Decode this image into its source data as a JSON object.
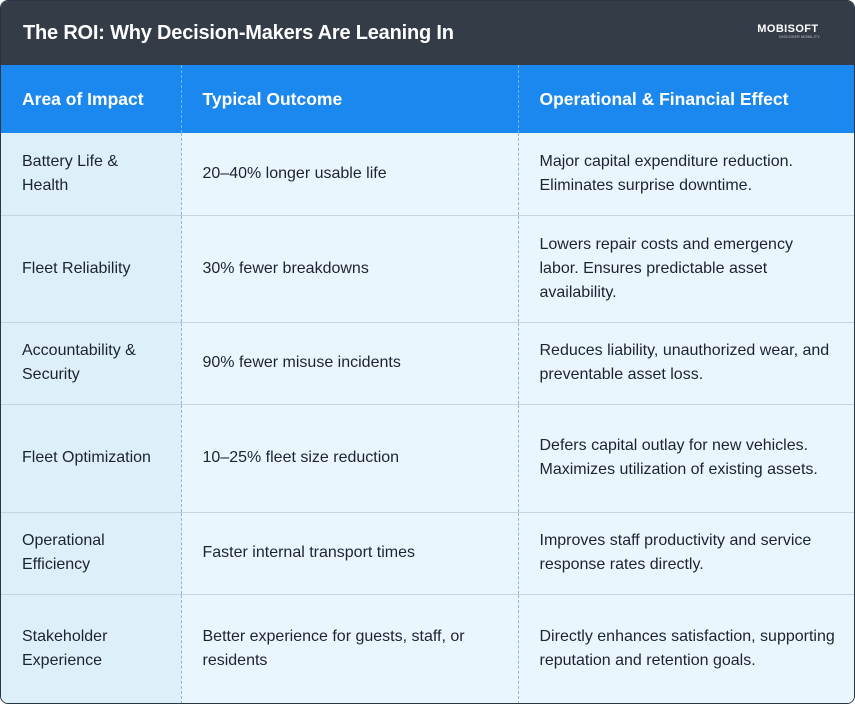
{
  "header": {
    "title": "The ROI: Why Decision-Makers Are Leaning In",
    "logo_text": "MOBISOFT",
    "logo_tagline": "DISCOVER MOBILITY"
  },
  "table": {
    "columns": [
      "Area of Impact",
      "Typical Outcome",
      "Operational & Financial Effect"
    ],
    "rows": [
      {
        "area": "Battery Life & Health",
        "outcome": "20–40% longer usable life",
        "effect": "Major capital expenditure reduction. Eliminates surprise downtime."
      },
      {
        "area": "Fleet Reliability",
        "outcome": "30% fewer breakdowns",
        "effect": "Lowers repair costs and emergency labor. Ensures predictable asset availability."
      },
      {
        "area": "Accountability & Security",
        "outcome": "90% fewer misuse incidents",
        "effect": "Reduces liability, unauthorized wear, and preventable asset loss."
      },
      {
        "area": "Fleet Optimization",
        "outcome": "10–25% fleet size reduction",
        "effect": "Defers capital outlay for new vehicles. Maximizes utilization of existing assets."
      },
      {
        "area": "Operational Efficiency",
        "outcome": "Faster internal transport times",
        "effect": "Improves staff productivity and service response rates directly."
      },
      {
        "area": "Stakeholder Experience",
        "outcome": "Better experience for guests, staff, or residents",
        "effect": "Directly enhances satisfaction, supporting reputation and retention goals."
      }
    ]
  }
}
